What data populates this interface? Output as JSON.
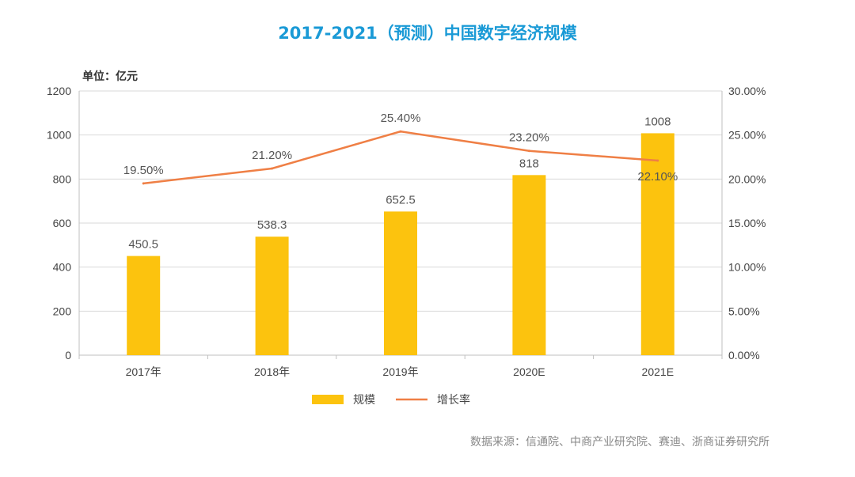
{
  "chart_data": {
    "type": "bar",
    "title": "2017-2021（预测）中国数字经济规模",
    "unit_label": "单位：亿元",
    "categories": [
      "2017年",
      "2018年",
      "2019年",
      "2020E",
      "2021E"
    ],
    "series": [
      {
        "name": "规模",
        "type": "bar",
        "axis": "left",
        "values": [
          450.5,
          538.3,
          652.5,
          818,
          1008
        ],
        "labels": [
          "450.5",
          "538.3",
          "652.5",
          "818",
          "1008"
        ],
        "color": "#fcc30e"
      },
      {
        "name": "增长率",
        "type": "line",
        "axis": "right",
        "values": [
          19.5,
          21.2,
          25.4,
          23.2,
          22.1
        ],
        "labels": [
          "19.50%",
          "21.20%",
          "25.40%",
          "23.20%",
          "22.10%"
        ],
        "color": "#ef7f45"
      }
    ],
    "y_left": {
      "min": 0,
      "max": 1200,
      "ticks": [
        "0",
        "200",
        "400",
        "600",
        "800",
        "1000",
        "1200"
      ]
    },
    "y_right": {
      "min": 0,
      "max": 30,
      "ticks": [
        "0.00%",
        "5.00%",
        "10.00%",
        "15.00%",
        "20.00%",
        "25.00%",
        "30.00%"
      ]
    },
    "grid": true,
    "legend_position": "bottom"
  },
  "source_note": "数据来源：信通院、中商产业研究院、赛迪、浙商证券研究所"
}
